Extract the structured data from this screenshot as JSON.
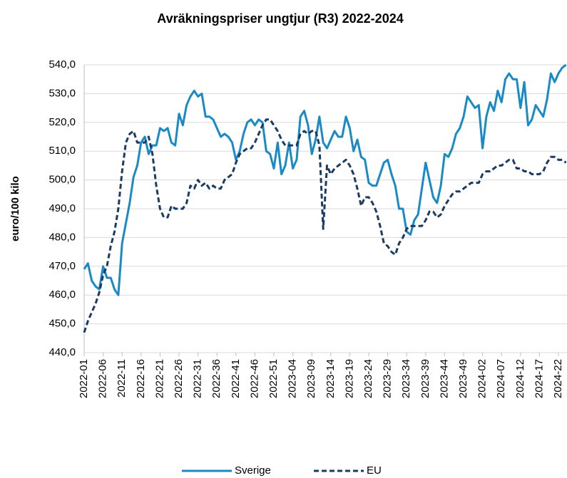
{
  "chart_data": {
    "type": "line",
    "title": "Avräkningspriser  ungtjur (R3)  2022-2024",
    "y_label": "euro/100 kilo",
    "categories": [
      "2022-01",
      null,
      null,
      null,
      null,
      "2022-06",
      null,
      null,
      null,
      null,
      "2022-11",
      null,
      null,
      null,
      null,
      "2022-16",
      null,
      null,
      null,
      null,
      "2022-21",
      null,
      null,
      null,
      null,
      "2022-26",
      null,
      null,
      null,
      null,
      "2022-31",
      null,
      null,
      null,
      null,
      "2022-36",
      null,
      null,
      null,
      null,
      "2022-41",
      null,
      null,
      null,
      null,
      "2022-46",
      null,
      null,
      null,
      null,
      "2022-51",
      null,
      null,
      null,
      null,
      "2023-04",
      null,
      null,
      null,
      null,
      "2023-09",
      null,
      null,
      null,
      null,
      "2023-14",
      null,
      null,
      null,
      null,
      "2023-19",
      null,
      null,
      null,
      null,
      "2023-24",
      null,
      null,
      null,
      null,
      "2023-29",
      null,
      null,
      null,
      null,
      "2023-34",
      null,
      null,
      null,
      null,
      "2023-39",
      null,
      null,
      null,
      null,
      "2023-44",
      null,
      null,
      null,
      null,
      "2023-49",
      null,
      null,
      null,
      null,
      "2024-02",
      null,
      null,
      null,
      null,
      "2024-07",
      null,
      null,
      null,
      null,
      "2024-12",
      null,
      null,
      null,
      null,
      "2024-17",
      null,
      null,
      null,
      null,
      "2024-22",
      null,
      null
    ],
    "series": [
      {
        "name": "Sverige",
        "color": "#1a8ac6",
        "line_style": "solid",
        "values": [
          469,
          471,
          465,
          463,
          462,
          470,
          466,
          466,
          462,
          460,
          478,
          485,
          492,
          501,
          505,
          513,
          515,
          509,
          512,
          512,
          518,
          517,
          518,
          513,
          512,
          523,
          519,
          526,
          529,
          531,
          529,
          530,
          522,
          522,
          521,
          518,
          515,
          516,
          515,
          513,
          507,
          510,
          516,
          520,
          521,
          519,
          521,
          520,
          510,
          509,
          504,
          513,
          502,
          505,
          513,
          504,
          507,
          522,
          524,
          519,
          509,
          514,
          522,
          513,
          511,
          514,
          517,
          515,
          515,
          522,
          518,
          510,
          514,
          508,
          507,
          499,
          498,
          498,
          502,
          506,
          507,
          502,
          498,
          490,
          490,
          482,
          481,
          486,
          488,
          497,
          506,
          500,
          494,
          492,
          498,
          509,
          508,
          511,
          516,
          518,
          522,
          529,
          527,
          525,
          526,
          511,
          522,
          527,
          524,
          531,
          527,
          535,
          537,
          535,
          535,
          525,
          534,
          519,
          521,
          526,
          524,
          522,
          528,
          537,
          534,
          537,
          539,
          540
        ]
      },
      {
        "name": "EU",
        "color": "#1c3b62",
        "line_style": "dashed",
        "values": [
          447,
          451,
          454,
          457,
          461,
          467,
          470,
          477,
          482,
          490,
          503,
          513,
          516,
          517,
          513,
          513,
          513,
          515,
          509,
          498,
          490,
          487,
          487,
          491,
          490,
          490,
          490,
          492,
          498,
          497,
          500,
          498,
          499,
          497,
          498,
          497,
          497,
          500,
          501,
          502,
          506,
          509,
          510,
          511,
          511,
          513,
          516,
          519,
          521,
          521,
          519,
          517,
          514,
          512,
          512,
          512,
          512,
          516,
          517,
          516,
          517,
          517,
          512,
          483,
          505,
          502,
          504,
          505,
          506,
          507,
          505,
          502,
          497,
          491,
          494,
          494,
          492,
          489,
          484,
          478,
          477,
          475,
          474,
          478,
          480,
          483,
          484,
          484,
          484,
          484,
          486,
          489,
          489,
          487,
          488,
          491,
          493,
          495,
          496,
          496,
          497,
          498,
          499,
          499,
          499,
          502,
          503,
          503,
          504,
          505,
          505,
          506,
          507,
          507,
          504,
          504,
          503,
          503,
          502,
          502,
          502,
          503,
          506,
          508,
          508,
          507,
          507,
          506
        ]
      }
    ],
    "ylim": [
      440,
      540
    ],
    "yticks": [
      {
        "value": 440,
        "label": "440,0"
      },
      {
        "value": 450,
        "label": "450,0"
      },
      {
        "value": 460,
        "label": "460,0"
      },
      {
        "value": 470,
        "label": "470,0"
      },
      {
        "value": 480,
        "label": "480,0"
      },
      {
        "value": 490,
        "label": "490,0"
      },
      {
        "value": 500,
        "label": "500,0"
      },
      {
        "value": 510,
        "label": "510,0"
      },
      {
        "value": 520,
        "label": "520,0"
      },
      {
        "value": 530,
        "label": "530,0"
      },
      {
        "value": 540,
        "label": "540,0"
      }
    ],
    "grid": true,
    "legend": "bottom"
  }
}
